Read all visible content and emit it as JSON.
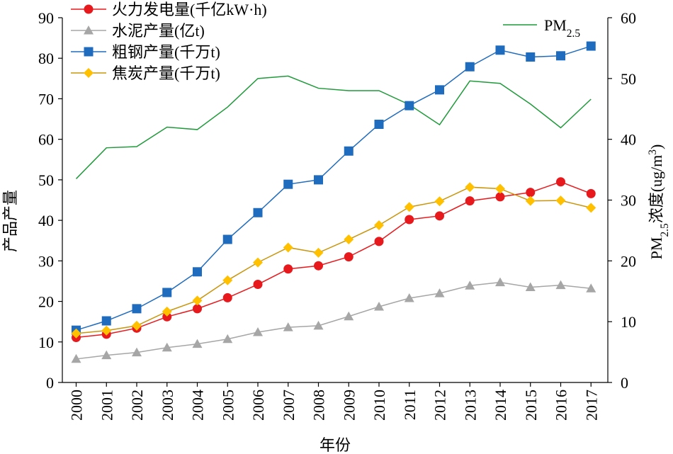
{
  "chart_data": {
    "type": "line",
    "title": "",
    "xlabel": "年份",
    "ylabel_left": "产品产量",
    "ylabel_right": {
      "prefix": "PM",
      "sub": "2.5",
      "middle": "浓度(ug/m",
      "sup": "3",
      "suffix": ")"
    },
    "x": [
      "2000",
      "2001",
      "2002",
      "2003",
      "2004",
      "2005",
      "2006",
      "2007",
      "2008",
      "2009",
      "2010",
      "2011",
      "2012",
      "2013",
      "2014",
      "2015",
      "2016",
      "2017"
    ],
    "y_left": {
      "min": 0,
      "max": 90,
      "step": 10,
      "ticks": [
        "0",
        "10",
        "20",
        "30",
        "40",
        "50",
        "60",
        "70",
        "80",
        "90"
      ]
    },
    "y_right": {
      "min": 0,
      "max": 60,
      "step": 10,
      "ticks": [
        "0",
        "10",
        "20",
        "30",
        "40",
        "50",
        "60"
      ]
    },
    "grid": false,
    "legend_placement": "top-left",
    "series": [
      {
        "name": "火力发电量(千亿kW·h)",
        "axis": "left",
        "marker": "circle",
        "color": "#e8191c",
        "values": [
          11.1,
          11.9,
          13.4,
          16.2,
          18.2,
          20.9,
          24.2,
          28.0,
          28.8,
          31.0,
          34.8,
          40.2,
          41.1,
          44.8,
          45.8,
          46.9,
          49.5,
          46.6
        ]
      },
      {
        "name": "水泥产量(亿t)",
        "axis": "left",
        "marker": "triangle",
        "color": "#a6a6a6",
        "values": [
          5.8,
          6.7,
          7.4,
          8.6,
          9.5,
          10.7,
          12.4,
          13.6,
          14.0,
          16.3,
          18.7,
          20.8,
          22.0,
          23.9,
          24.7,
          23.5,
          24.0,
          23.2
        ]
      },
      {
        "name": "粗钢产量(千万t)",
        "axis": "left",
        "marker": "square",
        "color": "#1f6bbd",
        "values": [
          12.9,
          15.2,
          18.2,
          22.2,
          27.3,
          35.3,
          41.9,
          48.9,
          50.0,
          57.1,
          63.7,
          68.3,
          72.2,
          77.9,
          82.0,
          80.3,
          80.6,
          83.0
        ]
      },
      {
        "name": "焦炭产量(千万t)",
        "axis": "left",
        "marker": "diamond",
        "color": "#ffc000",
        "line_color": "#c9950d",
        "values": [
          12.1,
          12.8,
          14.0,
          17.5,
          20.2,
          25.2,
          29.6,
          33.3,
          32.0,
          35.3,
          38.8,
          43.3,
          44.7,
          48.2,
          47.8,
          44.8,
          44.9,
          43.1
        ]
      },
      {
        "name": {
          "prefix": "PM",
          "sub": "2.5"
        },
        "axis": "right",
        "marker": "none",
        "color": "#1f9a3a",
        "values": [
          33.5,
          38.6,
          38.8,
          42.0,
          41.6,
          45.3,
          50.0,
          50.4,
          48.4,
          48.0,
          48.0,
          45.7,
          42.4,
          49.6,
          49.2,
          45.8,
          41.9,
          46.6
        ]
      }
    ]
  }
}
